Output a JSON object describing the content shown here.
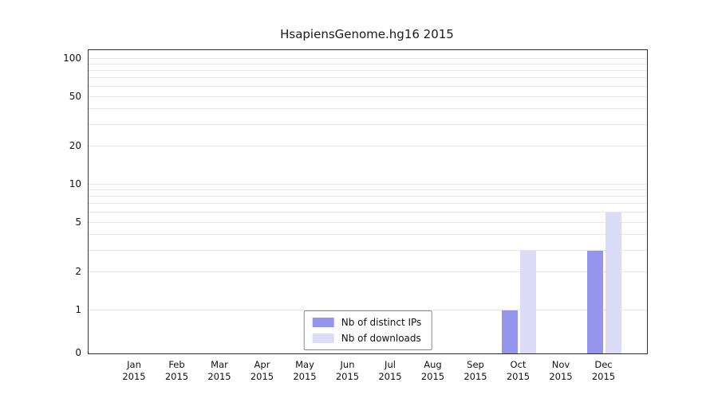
{
  "title": "HsapiensGenome.hg16 2015",
  "chart_data": {
    "type": "bar",
    "categories": [
      "Jan",
      "Feb",
      "Mar",
      "Apr",
      "May",
      "Jun",
      "Jul",
      "Aug",
      "Sep",
      "Oct",
      "Nov",
      "Dec"
    ],
    "year_label": "2015",
    "series": [
      {
        "name": "Nb of distinct IPs",
        "color": "#9595ee",
        "values": [
          0,
          0,
          0,
          0,
          0,
          0,
          0,
          0,
          0,
          1,
          0,
          3
        ]
      },
      {
        "name": "Nb of downloads",
        "color": "#dcdcf9",
        "values": [
          0,
          0,
          0,
          0,
          0,
          0,
          0,
          0,
          0,
          3,
          0,
          6
        ]
      }
    ],
    "yticks": [
      100,
      50,
      20,
      10,
      5,
      2,
      1,
      0
    ],
    "scale": "log",
    "ylim": [
      0,
      100
    ],
    "grid": true,
    "legend_position": "inside-bottom-center",
    "xlabel": "",
    "ylabel": ""
  },
  "colors": {
    "grid": "#e7e7e7",
    "axis": "#2f2f2f",
    "background": "#ffffff"
  }
}
